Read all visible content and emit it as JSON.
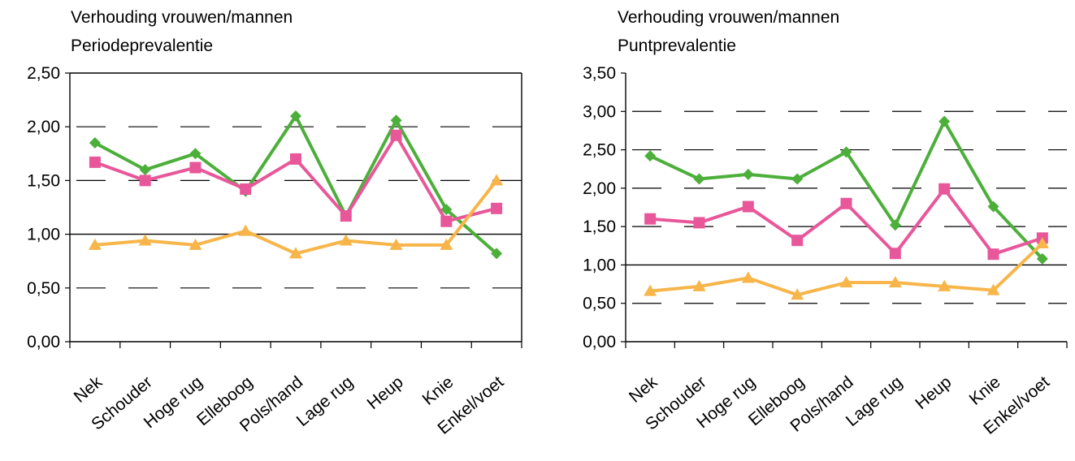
{
  "chart_data": [
    {
      "type": "line",
      "title": [
        "Verhouding vrouwen/mannen",
        "Periodeprevalentie"
      ],
      "categories": [
        "Nek",
        "Schouder",
        "Hoge rug",
        "Elleboog",
        "Pols/hand",
        "Lage rug",
        "Heup",
        "Knie",
        "Enkel/voet"
      ],
      "yticks": [
        "0,00",
        "0,50",
        "1,00",
        "1,50",
        "2,00",
        "2,50"
      ],
      "ylim": [
        0,
        2.5
      ],
      "grid": "dashed",
      "legend": "none",
      "series": [
        {
          "color": "#4caf3a",
          "marker": "diamond",
          "values": [
            1.85,
            1.6,
            1.75,
            1.4,
            2.1,
            1.17,
            2.06,
            1.23,
            0.82
          ]
        },
        {
          "color": "#e8579a",
          "marker": "square",
          "values": [
            1.67,
            1.5,
            1.62,
            1.42,
            1.7,
            1.17,
            1.92,
            1.12,
            1.24
          ]
        },
        {
          "color": "#f7b54a",
          "marker": "triangle",
          "values": [
            0.9,
            0.94,
            0.9,
            1.03,
            0.82,
            0.94,
            0.9,
            0.9,
            1.5
          ]
        }
      ]
    },
    {
      "type": "line",
      "title": [
        "Verhouding vrouwen/mannen",
        "Puntprevalentie"
      ],
      "categories": [
        "Nek",
        "Schouder",
        "Hoge rug",
        "Elleboog",
        "Pols/hand",
        "Lage rug",
        "Heup",
        "Knie",
        "Enkel/voet"
      ],
      "yticks": [
        "0,00",
        "0,50",
        "1,00",
        "1,50",
        "2,00",
        "2,50",
        "3,00",
        "3,50"
      ],
      "ylim": [
        0,
        3.5
      ],
      "grid": "dashed",
      "legend": "none",
      "series": [
        {
          "color": "#4caf3a",
          "marker": "diamond",
          "values": [
            2.42,
            2.12,
            2.18,
            2.12,
            2.47,
            1.52,
            2.87,
            1.76,
            1.08
          ]
        },
        {
          "color": "#e8579a",
          "marker": "square",
          "values": [
            1.6,
            1.55,
            1.76,
            1.32,
            1.8,
            1.15,
            1.99,
            1.14,
            1.35
          ]
        },
        {
          "color": "#f7b54a",
          "marker": "triangle",
          "values": [
            0.66,
            0.72,
            0.83,
            0.61,
            0.77,
            0.77,
            0.72,
            0.67,
            1.28
          ]
        }
      ]
    }
  ]
}
